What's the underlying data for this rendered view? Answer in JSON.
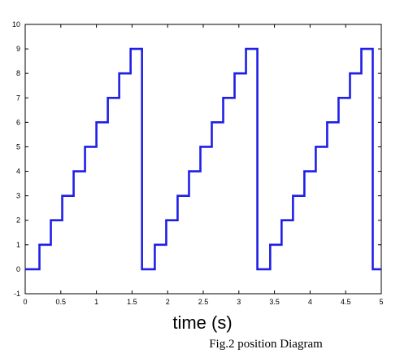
{
  "chart_data": {
    "type": "line",
    "title": "",
    "xlabel": "time (s)",
    "ylabel": "",
    "caption": "Fig.2 position Diagram",
    "xlim": [
      0,
      5
    ],
    "ylim": [
      -1,
      10
    ],
    "xticks": [
      0,
      0.5,
      1,
      1.5,
      2,
      2.5,
      3,
      3.5,
      4,
      4.5,
      5
    ],
    "xtick_labels": [
      "0",
      "0.5",
      "1",
      "1.5",
      "2",
      "2.5",
      "3",
      "3.5",
      "4",
      "4.5",
      "5"
    ],
    "yticks": [
      -1,
      0,
      1,
      2,
      3,
      4,
      5,
      6,
      7,
      8,
      9,
      10
    ],
    "ytick_labels": [
      "-1",
      "0",
      "1",
      "2",
      "3",
      "4",
      "5",
      "6",
      "7",
      "8",
      "9",
      "10"
    ],
    "grid": false,
    "series": [
      {
        "color": "#1f1fe6",
        "x": [
          0,
          0.2,
          0.2,
          0.36,
          0.36,
          0.52,
          0.52,
          0.68,
          0.68,
          0.84,
          0.84,
          1.0,
          1.0,
          1.16,
          1.16,
          1.32,
          1.32,
          1.48,
          1.48,
          1.64,
          1.64,
          1.66,
          1.66,
          1.82,
          1.82,
          1.98,
          1.98,
          2.14,
          2.14,
          2.3,
          2.3,
          2.46,
          2.46,
          2.62,
          2.62,
          2.78,
          2.78,
          2.94,
          2.94,
          3.1,
          3.1,
          3.26,
          3.26,
          3.28,
          3.28,
          3.44,
          3.44,
          3.6,
          3.6,
          3.76,
          3.76,
          3.92,
          3.92,
          4.08,
          4.08,
          4.24,
          4.24,
          4.4,
          4.4,
          4.56,
          4.56,
          4.72,
          4.72,
          4.88,
          4.88,
          5.0
        ],
        "y": [
          0,
          0,
          1,
          1,
          2,
          2,
          3,
          3,
          4,
          4,
          5,
          5,
          6,
          6,
          7,
          7,
          8,
          8,
          9,
          9,
          0,
          0,
          0,
          0,
          1,
          1,
          2,
          2,
          3,
          3,
          4,
          4,
          5,
          5,
          6,
          6,
          7,
          7,
          8,
          8,
          9,
          9,
          0,
          0,
          0,
          0,
          1,
          1,
          2,
          2,
          3,
          3,
          4,
          4,
          5,
          5,
          6,
          6,
          7,
          7,
          8,
          8,
          9,
          9,
          0,
          0
        ]
      }
    ]
  }
}
